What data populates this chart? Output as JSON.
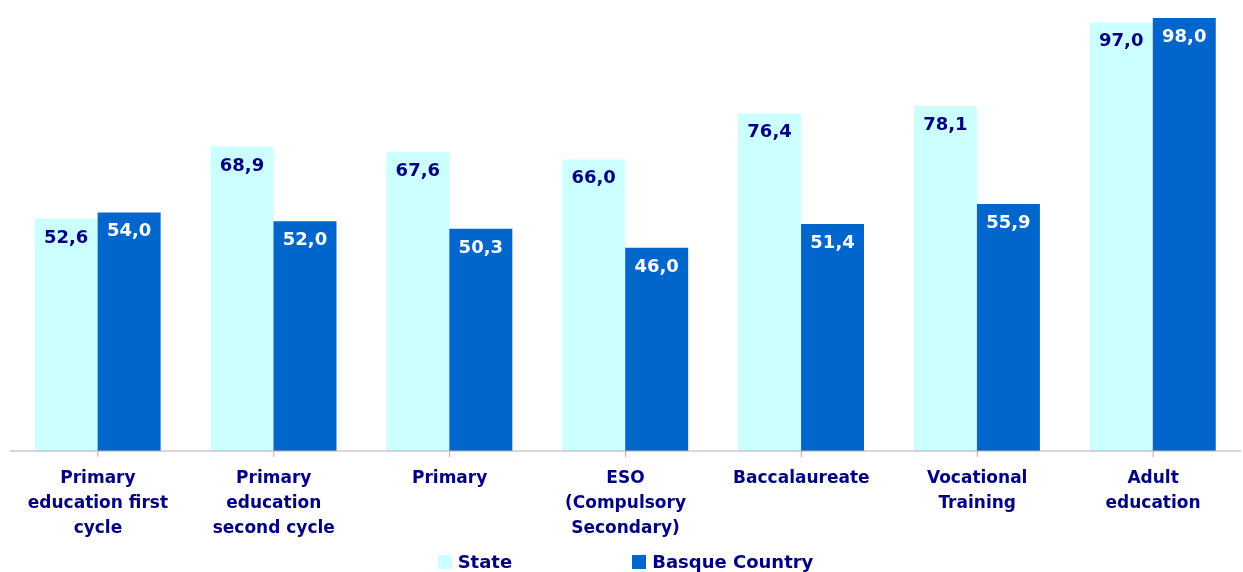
{
  "chart_data": {
    "type": "bar",
    "categories": [
      "Primary education first cycle",
      "Primary education second cycle",
      "Primary",
      "ESO (Compulsory Secondary)",
      "Baccalaureate",
      "Vocational Training",
      "Adult education"
    ],
    "series": [
      {
        "name": "State",
        "color": "#ccffff",
        "values": [
          52.6,
          68.9,
          67.6,
          66.0,
          76.4,
          78.1,
          97.0
        ],
        "value_labels": [
          "52,6",
          "68,9",
          "67,6",
          "66,0",
          "76,4",
          "78,1",
          "97,0"
        ]
      },
      {
        "name": "Basque Country",
        "color": "#0066cc",
        "values": [
          54.0,
          52.0,
          50.3,
          46.0,
          51.4,
          55.9,
          98.0
        ],
        "value_labels": [
          "54,0",
          "52,0",
          "50,3",
          "46,0",
          "51,4",
          "55,9",
          "98,0"
        ]
      }
    ],
    "legend": "bottom",
    "grid": false
  }
}
